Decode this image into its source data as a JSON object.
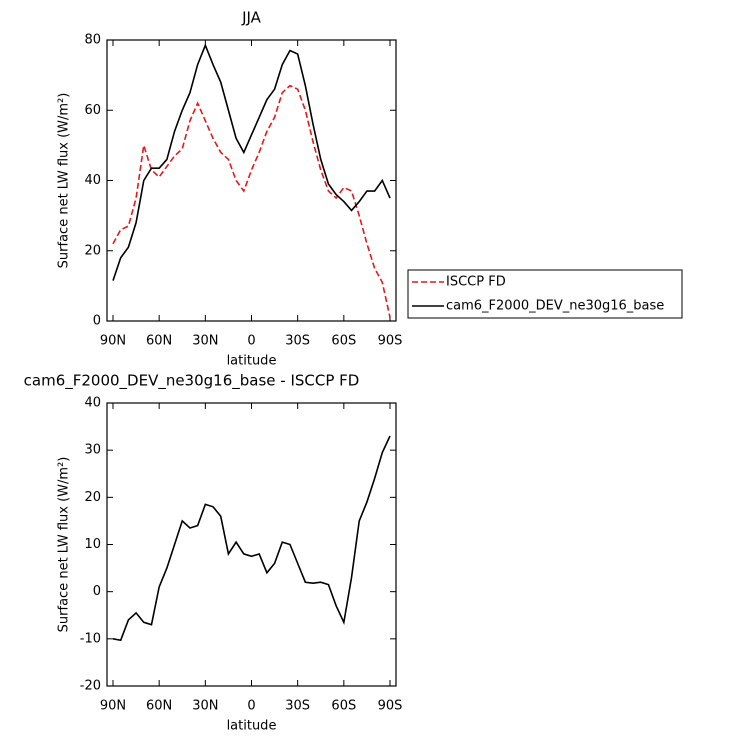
{
  "chart_data": [
    {
      "type": "line",
      "title": "JJA",
      "xlabel": "latitude",
      "ylabel": "Surface net LW flux (W/m²)",
      "x": [
        90,
        85,
        80,
        75,
        70,
        65,
        60,
        55,
        50,
        45,
        40,
        35,
        30,
        25,
        20,
        15,
        10,
        5,
        0,
        -5,
        -10,
        -15,
        -20,
        -25,
        -30,
        -35,
        -40,
        -45,
        -50,
        -55,
        -60,
        -65,
        -70,
        -75,
        -80,
        -85,
        -90
      ],
      "xlim": [
        90,
        -90
      ],
      "xticks": [
        {
          "value": 90,
          "label": "90N"
        },
        {
          "value": 60,
          "label": "60N"
        },
        {
          "value": 30,
          "label": "30N"
        },
        0,
        {
          "value": -30,
          "label": "30S"
        },
        {
          "value": -60,
          "label": "60S"
        },
        {
          "value": -90,
          "label": "90S"
        }
      ],
      "ylim": [
        0,
        80
      ],
      "yticks": [
        0,
        20,
        40,
        60,
        80
      ],
      "legend": "outside-right",
      "series": [
        {
          "name": "ISCCP FD",
          "color": "#e31a1c",
          "line_style": "dashed",
          "values": [
            22,
            26,
            27,
            35,
            50,
            43,
            41,
            44,
            47,
            49,
            57,
            62,
            57,
            52,
            48,
            46,
            40,
            37,
            43,
            48,
            54,
            58,
            65,
            67,
            66,
            60,
            51,
            43,
            37,
            35,
            38,
            37,
            30,
            22,
            15,
            11,
            1
          ]
        },
        {
          "name": "cam6_F2000_DEV_ne30g16_base",
          "color": "#000000",
          "line_style": "solid",
          "values": [
            11.5,
            18,
            21,
            28,
            40,
            43.5,
            43.5,
            46,
            54,
            60,
            65,
            73,
            78.5,
            73,
            68,
            60,
            52,
            48,
            53,
            58,
            63,
            66,
            73,
            77,
            76,
            67,
            56,
            46,
            39,
            36,
            34,
            31.5,
            34,
            37,
            37,
            40,
            35
          ]
        }
      ]
    },
    {
      "type": "line",
      "title": "cam6_F2000_DEV_ne30g16_base - ISCCP FD",
      "xlabel": "latitude",
      "ylabel": "Surface net LW flux (W/m²)",
      "x": [
        90,
        85,
        80,
        75,
        70,
        65,
        60,
        55,
        50,
        45,
        40,
        35,
        30,
        25,
        20,
        15,
        10,
        5,
        0,
        -5,
        -10,
        -15,
        -20,
        -25,
        -30,
        -35,
        -40,
        -45,
        -50,
        -55,
        -60,
        -65,
        -70,
        -75,
        -80,
        -85,
        -90
      ],
      "xlim": [
        90,
        -90
      ],
      "xticks": [
        {
          "value": 90,
          "label": "90N"
        },
        {
          "value": 60,
          "label": "60N"
        },
        {
          "value": 30,
          "label": "30N"
        },
        0,
        {
          "value": -30,
          "label": "30S"
        },
        {
          "value": -60,
          "label": "60S"
        },
        {
          "value": -90,
          "label": "90S"
        }
      ],
      "ylim": [
        -20,
        40
      ],
      "yticks": [
        -20,
        -10,
        0,
        10,
        20,
        30,
        40
      ],
      "series": [
        {
          "color": "#000000",
          "line_style": "solid",
          "values": [
            -10,
            -10.3,
            -6,
            -4.5,
            -6.5,
            -7,
            1,
            5,
            10,
            15,
            13.5,
            14,
            18.5,
            18,
            16,
            8,
            10.5,
            8,
            7.5,
            8,
            4,
            6,
            10.5,
            10,
            6,
            2,
            1.8,
            2,
            1.5,
            -3,
            -6.5,
            3,
            15,
            19,
            24,
            29.5,
            33
          ]
        }
      ]
    }
  ]
}
